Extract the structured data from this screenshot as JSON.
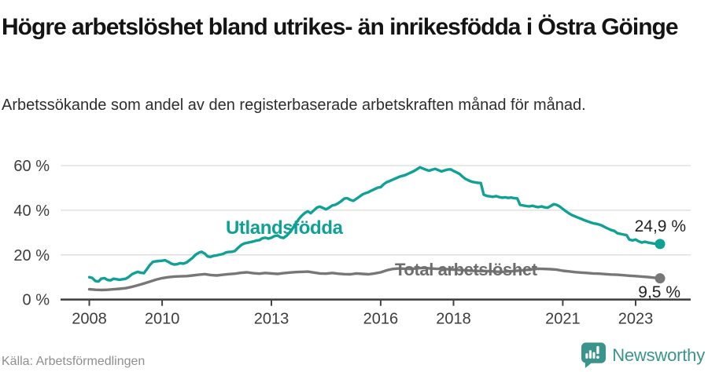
{
  "header": {
    "title": "Högre arbetslöshet bland utrikes- än inrikesfödda i Östra Göinge",
    "subtitle": "Arbetssökande som andel av den registerbaserade arbetskraften månad för månad."
  },
  "chart_data": {
    "type": "line",
    "x_unit": "decimal_year_monthly",
    "xlim": [
      2008.0,
      2023.67
    ],
    "ylim": [
      0,
      65
    ],
    "grid": "horizontal",
    "legend_position": "inline-labels",
    "axis_color": "#434343",
    "grid_color": "#dcdcdc",
    "tick_label_color": "#3d3d3d",
    "x_ticks": [
      {
        "v": 2008,
        "label": "2008"
      },
      {
        "v": 2010,
        "label": "2010"
      },
      {
        "v": 2013,
        "label": "2013"
      },
      {
        "v": 2016,
        "label": "2016"
      },
      {
        "v": 2018,
        "label": "2018"
      },
      {
        "v": 2021,
        "label": "2021"
      },
      {
        "v": 2023,
        "label": "2023"
      }
    ],
    "y_ticks": [
      {
        "v": 0,
        "label": "0 %"
      },
      {
        "v": 20,
        "label": "20 %"
      },
      {
        "v": 40,
        "label": "40 %"
      },
      {
        "v": 60,
        "label": "60 %"
      }
    ],
    "series": [
      {
        "name": "Utlandsfödda",
        "color": "#0FA096",
        "end_label": "24,9 %",
        "end_value": 24.9,
        "points": [
          [
            2008.0,
            10.0
          ],
          [
            2008.08,
            9.7
          ],
          [
            2008.17,
            8.3
          ],
          [
            2008.25,
            8.1
          ],
          [
            2008.33,
            9.4
          ],
          [
            2008.42,
            9.6
          ],
          [
            2008.5,
            8.8
          ],
          [
            2008.58,
            8.6
          ],
          [
            2008.67,
            9.3
          ],
          [
            2008.75,
            9.1
          ],
          [
            2008.83,
            8.9
          ],
          [
            2008.92,
            9.1
          ],
          [
            2009.0,
            9.3
          ],
          [
            2009.08,
            10.1
          ],
          [
            2009.17,
            11.3
          ],
          [
            2009.25,
            11.9
          ],
          [
            2009.33,
            12.4
          ],
          [
            2009.42,
            12.0
          ],
          [
            2009.5,
            11.8
          ],
          [
            2009.58,
            13.6
          ],
          [
            2009.67,
            15.6
          ],
          [
            2009.75,
            16.9
          ],
          [
            2009.83,
            17.1
          ],
          [
            2009.92,
            17.3
          ],
          [
            2010.0,
            17.4
          ],
          [
            2010.08,
            17.6
          ],
          [
            2010.17,
            16.9
          ],
          [
            2010.25,
            16.1
          ],
          [
            2010.33,
            15.7
          ],
          [
            2010.42,
            15.9
          ],
          [
            2010.5,
            16.3
          ],
          [
            2010.58,
            16.1
          ],
          [
            2010.67,
            16.6
          ],
          [
            2010.75,
            17.6
          ],
          [
            2010.83,
            18.6
          ],
          [
            2010.92,
            20.1
          ],
          [
            2011.0,
            20.9
          ],
          [
            2011.08,
            21.4
          ],
          [
            2011.17,
            20.6
          ],
          [
            2011.25,
            19.3
          ],
          [
            2011.33,
            19.1
          ],
          [
            2011.42,
            19.6
          ],
          [
            2011.5,
            19.8
          ],
          [
            2011.58,
            20.1
          ],
          [
            2011.67,
            20.4
          ],
          [
            2011.75,
            21.1
          ],
          [
            2011.83,
            21.3
          ],
          [
            2011.92,
            21.4
          ],
          [
            2012.0,
            21.8
          ],
          [
            2012.08,
            23.1
          ],
          [
            2012.17,
            24.4
          ],
          [
            2012.25,
            25.1
          ],
          [
            2012.33,
            25.4
          ],
          [
            2012.42,
            25.7
          ],
          [
            2012.5,
            26.0
          ],
          [
            2012.58,
            26.4
          ],
          [
            2012.67,
            26.6
          ],
          [
            2012.75,
            27.4
          ],
          [
            2012.83,
            27.7
          ],
          [
            2012.92,
            27.3
          ],
          [
            2013.0,
            27.7
          ],
          [
            2013.08,
            28.4
          ],
          [
            2013.17,
            28.7
          ],
          [
            2013.25,
            27.9
          ],
          [
            2013.33,
            27.6
          ],
          [
            2013.42,
            28.6
          ],
          [
            2013.5,
            30.0
          ],
          [
            2013.58,
            31.8
          ],
          [
            2013.67,
            34.0
          ],
          [
            2013.75,
            36.0
          ],
          [
            2013.83,
            37.5
          ],
          [
            2013.92,
            38.8
          ],
          [
            2014.0,
            39.5
          ],
          [
            2014.08,
            38.7
          ],
          [
            2014.17,
            40.0
          ],
          [
            2014.25,
            41.2
          ],
          [
            2014.33,
            41.6
          ],
          [
            2014.42,
            41.0
          ],
          [
            2014.5,
            40.4
          ],
          [
            2014.58,
            41.1
          ],
          [
            2014.67,
            42.1
          ],
          [
            2014.75,
            42.4
          ],
          [
            2014.83,
            43.1
          ],
          [
            2014.92,
            44.1
          ],
          [
            2015.0,
            45.2
          ],
          [
            2015.08,
            45.4
          ],
          [
            2015.17,
            44.6
          ],
          [
            2015.25,
            44.2
          ],
          [
            2015.33,
            45.1
          ],
          [
            2015.42,
            46.1
          ],
          [
            2015.5,
            47.1
          ],
          [
            2015.58,
            47.6
          ],
          [
            2015.67,
            48.1
          ],
          [
            2015.75,
            48.8
          ],
          [
            2015.83,
            49.4
          ],
          [
            2015.92,
            50.1
          ],
          [
            2016.0,
            50.3
          ],
          [
            2016.08,
            51.6
          ],
          [
            2016.17,
            52.6
          ],
          [
            2016.25,
            53.1
          ],
          [
            2016.33,
            53.7
          ],
          [
            2016.42,
            54.3
          ],
          [
            2016.5,
            54.9
          ],
          [
            2016.58,
            55.3
          ],
          [
            2016.67,
            55.7
          ],
          [
            2016.75,
            56.3
          ],
          [
            2016.83,
            56.9
          ],
          [
            2016.92,
            57.6
          ],
          [
            2017.0,
            58.4
          ],
          [
            2017.08,
            59.2
          ],
          [
            2017.17,
            58.6
          ],
          [
            2017.25,
            58.1
          ],
          [
            2017.33,
            57.7
          ],
          [
            2017.42,
            58.2
          ],
          [
            2017.5,
            58.5
          ],
          [
            2017.58,
            58.0
          ],
          [
            2017.67,
            57.4
          ],
          [
            2017.75,
            57.8
          ],
          [
            2017.83,
            58.2
          ],
          [
            2017.92,
            58.3
          ],
          [
            2018.0,
            57.6
          ],
          [
            2018.08,
            57.0
          ],
          [
            2018.17,
            56.2
          ],
          [
            2018.25,
            55.0
          ],
          [
            2018.33,
            54.0
          ],
          [
            2018.42,
            53.3
          ],
          [
            2018.5,
            52.8
          ],
          [
            2018.58,
            52.5
          ],
          [
            2018.67,
            52.3
          ],
          [
            2018.75,
            52.2
          ],
          [
            2018.83,
            47.0
          ],
          [
            2018.92,
            46.4
          ],
          [
            2019.0,
            46.2
          ],
          [
            2019.08,
            46.0
          ],
          [
            2019.17,
            46.3
          ],
          [
            2019.25,
            45.9
          ],
          [
            2019.33,
            45.6
          ],
          [
            2019.42,
            45.8
          ],
          [
            2019.5,
            45.5
          ],
          [
            2019.58,
            45.7
          ],
          [
            2019.67,
            45.4
          ],
          [
            2019.75,
            45.3
          ],
          [
            2019.83,
            42.4
          ],
          [
            2019.92,
            42.1
          ],
          [
            2020.0,
            41.9
          ],
          [
            2020.08,
            41.7
          ],
          [
            2020.17,
            42.0
          ],
          [
            2020.25,
            41.6
          ],
          [
            2020.33,
            41.4
          ],
          [
            2020.42,
            41.7
          ],
          [
            2020.5,
            41.3
          ],
          [
            2020.58,
            41.1
          ],
          [
            2020.67,
            41.9
          ],
          [
            2020.75,
            42.7
          ],
          [
            2020.83,
            42.4
          ],
          [
            2020.92,
            41.6
          ],
          [
            2021.0,
            40.6
          ],
          [
            2021.08,
            39.6
          ],
          [
            2021.17,
            38.6
          ],
          [
            2021.25,
            37.8
          ],
          [
            2021.33,
            37.3
          ],
          [
            2021.42,
            36.7
          ],
          [
            2021.5,
            36.2
          ],
          [
            2021.58,
            35.6
          ],
          [
            2021.67,
            35.1
          ],
          [
            2021.75,
            34.6
          ],
          [
            2021.83,
            34.2
          ],
          [
            2021.92,
            33.9
          ],
          [
            2022.0,
            33.6
          ],
          [
            2022.08,
            33.1
          ],
          [
            2022.17,
            32.3
          ],
          [
            2022.25,
            31.7
          ],
          [
            2022.33,
            31.1
          ],
          [
            2022.42,
            30.7
          ],
          [
            2022.5,
            29.7
          ],
          [
            2022.58,
            29.4
          ],
          [
            2022.67,
            29.1
          ],
          [
            2022.75,
            28.9
          ],
          [
            2022.83,
            26.8
          ],
          [
            2022.92,
            26.5
          ],
          [
            2023.0,
            26.9
          ],
          [
            2023.08,
            26.1
          ],
          [
            2023.17,
            25.5
          ],
          [
            2023.25,
            25.9
          ],
          [
            2023.33,
            25.6
          ],
          [
            2023.42,
            25.3
          ],
          [
            2023.5,
            25.1
          ],
          [
            2023.58,
            25.0
          ],
          [
            2023.67,
            24.9
          ]
        ]
      },
      {
        "name": "Total arbetslöshet",
        "color": "#777777",
        "end_label": "9,5 %",
        "end_value": 9.5,
        "points": [
          [
            2008.0,
            4.6
          ],
          [
            2008.17,
            4.4
          ],
          [
            2008.33,
            4.3
          ],
          [
            2008.5,
            4.4
          ],
          [
            2008.67,
            4.6
          ],
          [
            2008.83,
            4.8
          ],
          [
            2009.0,
            5.1
          ],
          [
            2009.17,
            5.7
          ],
          [
            2009.33,
            6.4
          ],
          [
            2009.5,
            7.2
          ],
          [
            2009.67,
            8.1
          ],
          [
            2009.83,
            8.9
          ],
          [
            2010.0,
            9.6
          ],
          [
            2010.17,
            10.0
          ],
          [
            2010.33,
            10.3
          ],
          [
            2010.5,
            10.4
          ],
          [
            2010.67,
            10.5
          ],
          [
            2010.83,
            10.8
          ],
          [
            2011.0,
            11.1
          ],
          [
            2011.17,
            11.4
          ],
          [
            2011.33,
            11.0
          ],
          [
            2011.5,
            10.8
          ],
          [
            2011.67,
            11.1
          ],
          [
            2011.83,
            11.4
          ],
          [
            2012.0,
            11.6
          ],
          [
            2012.17,
            12.0
          ],
          [
            2012.33,
            12.2
          ],
          [
            2012.5,
            11.8
          ],
          [
            2012.67,
            11.6
          ],
          [
            2012.83,
            11.9
          ],
          [
            2013.0,
            11.7
          ],
          [
            2013.17,
            11.5
          ],
          [
            2013.33,
            11.8
          ],
          [
            2013.5,
            12.1
          ],
          [
            2013.67,
            12.3
          ],
          [
            2013.83,
            12.4
          ],
          [
            2014.0,
            12.5
          ],
          [
            2014.17,
            12.1
          ],
          [
            2014.33,
            11.7
          ],
          [
            2014.5,
            11.6
          ],
          [
            2014.67,
            11.9
          ],
          [
            2014.83,
            11.6
          ],
          [
            2015.0,
            11.4
          ],
          [
            2015.17,
            11.3
          ],
          [
            2015.33,
            11.7
          ],
          [
            2015.5,
            11.5
          ],
          [
            2015.67,
            11.3
          ],
          [
            2015.83,
            11.7
          ],
          [
            2016.0,
            12.2
          ],
          [
            2016.17,
            13.1
          ],
          [
            2016.33,
            13.7
          ],
          [
            2016.5,
            13.9
          ],
          [
            2016.67,
            13.8
          ],
          [
            2016.83,
            13.7
          ],
          [
            2017.0,
            14.0
          ],
          [
            2017.17,
            14.2
          ],
          [
            2017.33,
            14.0
          ],
          [
            2017.5,
            13.8
          ],
          [
            2017.67,
            13.7
          ],
          [
            2017.83,
            13.6
          ],
          [
            2018.0,
            13.4
          ],
          [
            2018.17,
            13.2
          ],
          [
            2018.33,
            13.1
          ],
          [
            2018.5,
            12.9
          ],
          [
            2018.67,
            12.8
          ],
          [
            2018.83,
            12.8
          ],
          [
            2019.0,
            12.7
          ],
          [
            2019.17,
            12.5
          ],
          [
            2019.33,
            12.4
          ],
          [
            2019.5,
            12.6
          ],
          [
            2019.67,
            12.8
          ],
          [
            2019.83,
            13.0
          ],
          [
            2020.0,
            13.3
          ],
          [
            2020.17,
            13.6
          ],
          [
            2020.33,
            13.8
          ],
          [
            2020.5,
            13.7
          ],
          [
            2020.67,
            13.6
          ],
          [
            2020.83,
            13.4
          ],
          [
            2021.0,
            12.9
          ],
          [
            2021.17,
            12.6
          ],
          [
            2021.33,
            12.3
          ],
          [
            2021.5,
            12.1
          ],
          [
            2021.67,
            11.9
          ],
          [
            2021.83,
            11.7
          ],
          [
            2022.0,
            11.6
          ],
          [
            2022.17,
            11.4
          ],
          [
            2022.33,
            11.2
          ],
          [
            2022.5,
            11.1
          ],
          [
            2022.67,
            10.9
          ],
          [
            2022.83,
            10.7
          ],
          [
            2023.0,
            10.5
          ],
          [
            2023.17,
            10.3
          ],
          [
            2023.33,
            10.1
          ],
          [
            2023.5,
            9.8
          ],
          [
            2023.67,
            9.5
          ]
        ]
      }
    ]
  },
  "footer": {
    "source": "Källa: Arbetsförmedlingen",
    "brand": "Newsworthy",
    "brand_color": "#3a948b"
  }
}
